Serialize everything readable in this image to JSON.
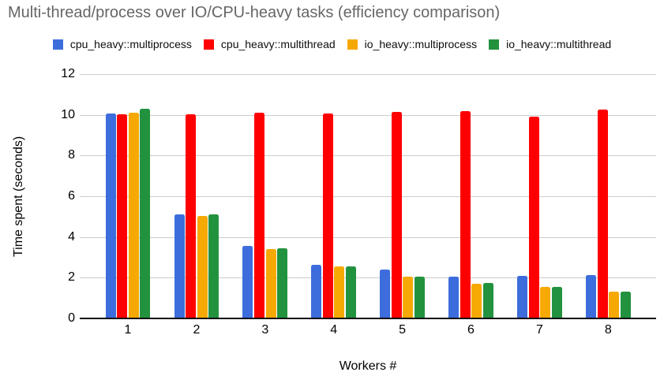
{
  "title": "Multi-thread/process over IO/CPU-heavy tasks (efficiency comparison)",
  "colors": {
    "background": "#ffffff",
    "title": "#666666",
    "gridline": "#cccccc",
    "axis_line": "#111111",
    "text": "#000000",
    "series_blue": "#3d6ddc",
    "series_red": "#fe0000",
    "series_yellow": "#f6a904",
    "series_green": "#23923e"
  },
  "legend": {
    "items": [
      {
        "label": "cpu_heavy::multiprocess",
        "color": "#3d6ddc"
      },
      {
        "label": "cpu_heavy::multithread",
        "color": "#fe0000"
      },
      {
        "label": "io_heavy::multiprocess",
        "color": "#f6a904"
      },
      {
        "label": "io_heavy::multithread",
        "color": "#23923e"
      }
    ]
  },
  "chart_data": {
    "type": "bar",
    "title": "Multi-thread/process over IO/CPU-heavy tasks (efficiency comparison)",
    "xlabel": "Workers #",
    "ylabel": "Time spent (seconds)",
    "categories": [
      "1",
      "2",
      "3",
      "4",
      "5",
      "6",
      "7",
      "8"
    ],
    "series": [
      {
        "name": "cpu_heavy::multiprocess",
        "color": "#3d6ddc",
        "values": [
          10.08,
          5.1,
          3.55,
          2.65,
          2.4,
          2.04,
          2.08,
          2.15
        ]
      },
      {
        "name": "cpu_heavy::multithread",
        "color": "#fe0000",
        "values": [
          10.03,
          10.04,
          10.1,
          10.08,
          10.13,
          10.17,
          9.9,
          10.27
        ]
      },
      {
        "name": "io_heavy::multiprocess",
        "color": "#f6a904",
        "values": [
          10.09,
          5.05,
          3.42,
          2.55,
          2.05,
          1.72,
          1.55,
          1.33
        ]
      },
      {
        "name": "io_heavy::multithread",
        "color": "#23923e",
        "values": [
          10.28,
          5.12,
          3.46,
          2.56,
          2.05,
          1.74,
          1.55,
          1.3
        ]
      }
    ],
    "ylim": [
      0,
      12
    ],
    "yticks": [
      0,
      2,
      4,
      6,
      8,
      10,
      12
    ],
    "grid": true,
    "legend_position": "top"
  }
}
